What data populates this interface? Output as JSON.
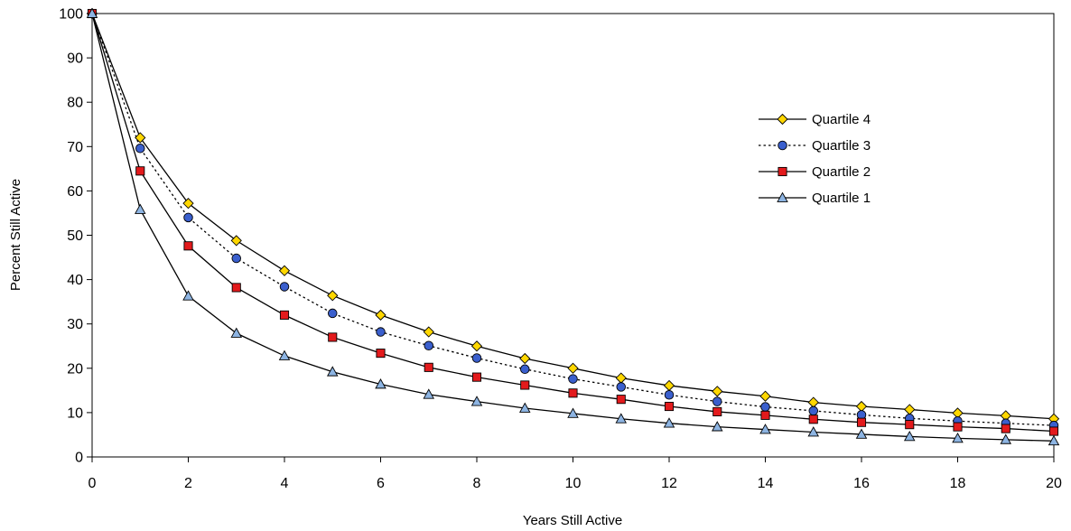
{
  "chart_data": {
    "type": "line",
    "title": "",
    "xlabel": "Years Still Active",
    "ylabel": "Percent Still Active",
    "x": [
      0,
      1,
      2,
      3,
      4,
      5,
      6,
      7,
      8,
      9,
      10,
      11,
      12,
      13,
      14,
      15,
      16,
      17,
      18,
      19,
      20
    ],
    "xlim": [
      0,
      20
    ],
    "ylim": [
      0,
      100
    ],
    "xticks": [
      0,
      2,
      4,
      6,
      8,
      10,
      12,
      14,
      16,
      18,
      20
    ],
    "yticks": [
      0,
      10,
      20,
      30,
      40,
      50,
      60,
      70,
      80,
      90,
      100
    ],
    "grid": false,
    "legend_position": "right",
    "series": [
      {
        "name": "Quartile 4",
        "marker": "diamond",
        "line": "solid",
        "color": "#FFD700",
        "values": [
          100,
          72.0,
          57.2,
          48.8,
          42.0,
          36.4,
          32.0,
          28.2,
          25.0,
          22.2,
          20.0,
          17.8,
          16.1,
          14.8,
          13.7,
          12.3,
          11.4,
          10.7,
          9.9,
          9.3,
          8.6
        ]
      },
      {
        "name": "Quartile 3",
        "marker": "circle",
        "line": "dotted",
        "color": "#3A5FCD",
        "values": [
          100,
          69.6,
          54.0,
          44.8,
          38.4,
          32.4,
          28.2,
          25.1,
          22.3,
          19.8,
          17.6,
          15.8,
          14.0,
          12.5,
          11.3,
          10.4,
          9.5,
          8.7,
          8.1,
          7.6,
          7.1
        ]
      },
      {
        "name": "Quartile 2",
        "marker": "square",
        "line": "solid",
        "color": "#E31A1C",
        "values": [
          100,
          64.5,
          47.6,
          38.2,
          32.0,
          27.0,
          23.4,
          20.2,
          18.0,
          16.2,
          14.4,
          13.0,
          11.4,
          10.2,
          9.4,
          8.5,
          7.8,
          7.3,
          6.8,
          6.4,
          5.8
        ]
      },
      {
        "name": "Quartile 1",
        "marker": "triangle",
        "line": "solid",
        "color": "#8DB4E2",
        "values": [
          100,
          55.8,
          36.3,
          27.9,
          22.8,
          19.2,
          16.4,
          14.1,
          12.5,
          11.0,
          9.8,
          8.6,
          7.6,
          6.8,
          6.2,
          5.6,
          5.1,
          4.6,
          4.2,
          3.9,
          3.6
        ]
      }
    ]
  }
}
